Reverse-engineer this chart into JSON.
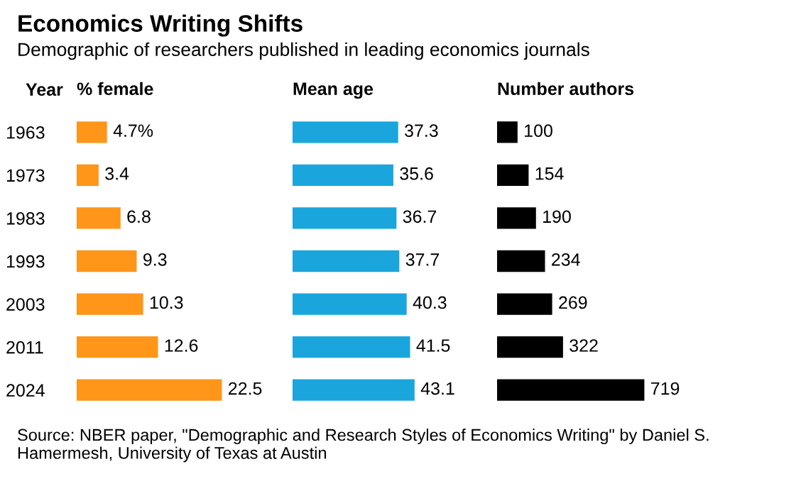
{
  "chart_data": [
    {
      "type": "bar",
      "orientation": "horizontal",
      "title": "Economics Writing Shifts",
      "subtitle": "Demographic of researchers published in leading economics journals",
      "ylabel": "Year",
      "xlabel": "% female",
      "tick_labels": "y",
      "categories": [
        "1963",
        "1973",
        "1983",
        "1993",
        "2003",
        "2011",
        "2024"
      ],
      "values": [
        4.7,
        3.4,
        6.8,
        9.3,
        10.3,
        12.6,
        22.5
      ],
      "value_labels": [
        "4.7%",
        "3.4",
        "6.8",
        "9.3",
        "10.3",
        "12.6",
        "22.5"
      ],
      "color": "#ff9519",
      "annotations": [
        "Source: NBER paper, \"Demographic and Research Styles of Economics Writing\" by Daniel S. Hamermesh, University of Texas at Austin"
      ]
    },
    {
      "type": "bar",
      "orientation": "horizontal",
      "xlabel": "Mean age",
      "tick_labels": false,
      "categories": [
        "1963",
        "1973",
        "1983",
        "1993",
        "2003",
        "2011",
        "2024"
      ],
      "values": [
        37.3,
        35.6,
        36.7,
        37.7,
        40.3,
        41.5,
        43.1
      ],
      "data_labels": true,
      "color": "#1aa6dc"
    },
    {
      "type": "bar",
      "orientation": "horizontal",
      "xlabel": "Number authors",
      "tick_labels": false,
      "categories": [
        "1963",
        "1973",
        "1983",
        "1993",
        "2003",
        "2011",
        "2024"
      ],
      "values": [
        100,
        154,
        190,
        234,
        269,
        322,
        719
      ],
      "data_labels": true,
      "color": "#000000"
    }
  ]
}
